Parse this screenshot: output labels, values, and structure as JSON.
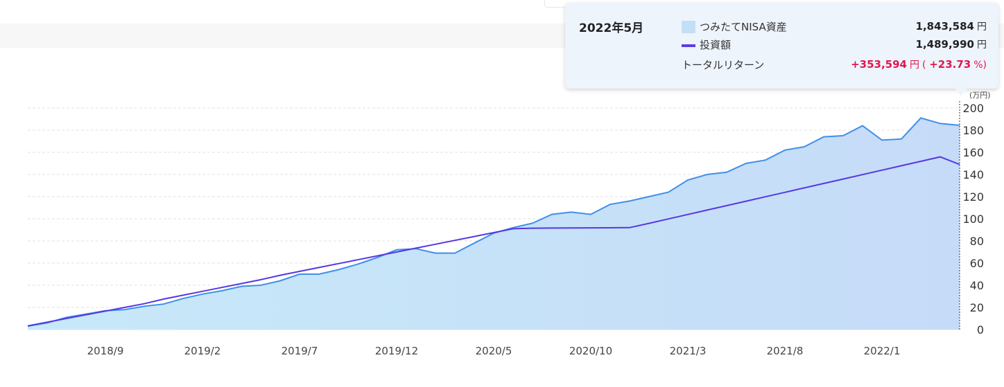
{
  "tooltip": {
    "date": "2022年5月",
    "asset_label": "つみたてNISA資産",
    "asset_value": "1,843,584",
    "invest_label": "投資額",
    "invest_value": "1,489,990",
    "return_label": "トータルリターン",
    "return_value": "+353,594",
    "return_paren_open": "(",
    "return_pct": "+23.73",
    "return_pct_unit": "%)",
    "unit": "円"
  },
  "colors": {
    "asset_line": "#3f8fe8",
    "asset_fill_start": "#c7e9f9",
    "asset_fill_end": "#c6dbf8",
    "invest_line": "#5637e3",
    "grid": "#e2e2e2",
    "return": "#e0174e"
  },
  "chart_data": {
    "type": "area",
    "y_unit_label": "(万円)",
    "ylim": [
      0,
      200
    ],
    "yticks": [
      0,
      20,
      40,
      60,
      80,
      100,
      120,
      140,
      160,
      180,
      200
    ],
    "x_tick_labels": [
      "2018/9",
      "2019/2",
      "2019/7",
      "2019/12",
      "2020/5",
      "2020/10",
      "2021/3",
      "2021/8",
      "2022/1"
    ],
    "x_tick_index": [
      4,
      9,
      14,
      19,
      24,
      29,
      34,
      39,
      44
    ],
    "x_start": "2018/5",
    "x_end": "2022/5",
    "grid": "horizontal dashed",
    "series": [
      {
        "name": "つみたてNISA資産",
        "type": "area",
        "values": [
          3,
          6,
          11,
          14,
          17,
          18,
          21,
          23,
          28,
          32,
          35,
          39,
          40,
          44,
          50,
          50,
          54,
          59,
          65,
          72,
          73,
          69,
          69,
          78,
          87,
          92,
          96,
          104,
          106,
          104,
          113,
          116,
          120,
          124,
          135,
          140,
          142,
          150,
          153,
          162,
          165,
          174,
          175,
          184,
          171,
          172,
          191,
          186,
          184.4
        ]
      },
      {
        "name": "投資額",
        "type": "line",
        "values": [
          3.3,
          6.6,
          10,
          13.3,
          16.6,
          20,
          23.3,
          27.5,
          31,
          34.5,
          38,
          41.5,
          45,
          49,
          52.5,
          56,
          59.5,
          63,
          66.5,
          70,
          73.5,
          77,
          80.5,
          84,
          87.5,
          91,
          91.5,
          91.6,
          91.7,
          91.8,
          91.9,
          92,
          95.9,
          99.9,
          103.9,
          107.9,
          111.9,
          115.9,
          119.9,
          123.9,
          127.9,
          131.9,
          135.9,
          139.9,
          143.9,
          147.9,
          151.9,
          155.9,
          149
        ]
      }
    ]
  }
}
